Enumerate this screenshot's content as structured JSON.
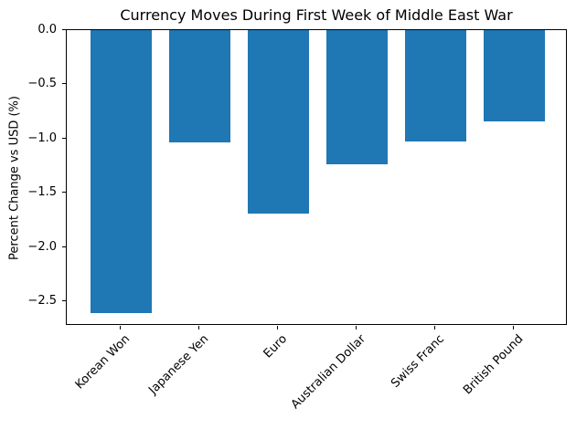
{
  "chart_data": {
    "type": "bar",
    "title": "Currency Moves During First Week of Middle East War",
    "xlabel": "",
    "ylabel": "Percent Change vs USD (%)",
    "categories": [
      "Korean Won",
      "Japanese Yen",
      "Euro",
      "Australian Dollar",
      "Swiss Franc",
      "British Pound"
    ],
    "values": [
      -2.6,
      -1.03,
      -1.69,
      -1.23,
      -1.02,
      -0.84
    ],
    "bar_color": "#1f77b4",
    "axis_color": "#000000",
    "text_color": "#000000",
    "background_color": "#ffffff",
    "ylim": [
      -2.72,
      0
    ],
    "yticks": [
      0.0,
      -0.5,
      -1.0,
      -1.5,
      -2.0,
      -2.5
    ],
    "ytick_labels": [
      "0.0",
      "−0.5",
      "−1.0",
      "−1.5",
      "−2.0",
      "−2.5"
    ],
    "xtick_rotation_deg": 45,
    "grid": false,
    "legend": "none"
  }
}
